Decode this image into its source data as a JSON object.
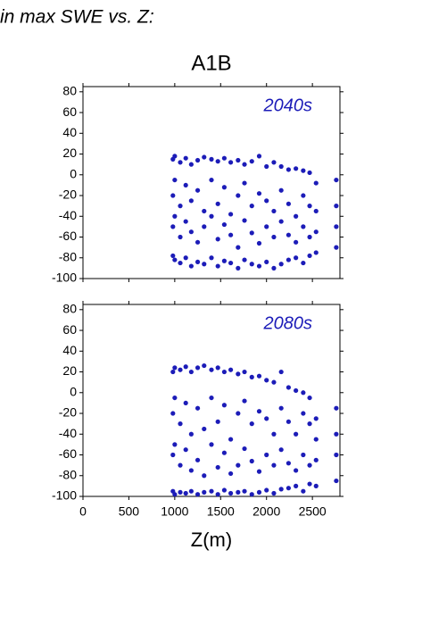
{
  "header": {
    "title": "in max SWE vs. Z:"
  },
  "chart_data": [
    {
      "type": "scatter",
      "title": "A1B",
      "annotation": "2040s",
      "color": "#1c1cb8",
      "xlim": [
        0,
        2800
      ],
      "ylim": [
        -100,
        85
      ],
      "yticks": [
        80,
        60,
        40,
        20,
        0,
        -20,
        -40,
        -60,
        -80,
        -100
      ],
      "xticks": [
        0,
        500,
        1000,
        1500,
        2000,
        2500
      ],
      "x": [
        980,
        980,
        980,
        980,
        1000,
        1000,
        1000,
        1000,
        1060,
        1060,
        1060,
        1060,
        1120,
        1120,
        1120,
        1120,
        1180,
        1180,
        1180,
        1180,
        1250,
        1250,
        1250,
        1250,
        1320,
        1320,
        1320,
        1320,
        1400,
        1400,
        1400,
        1400,
        1470,
        1470,
        1470,
        1470,
        1540,
        1540,
        1540,
        1540,
        1610,
        1610,
        1610,
        1610,
        1690,
        1690,
        1690,
        1690,
        1760,
        1760,
        1760,
        1760,
        1840,
        1840,
        1840,
        1840,
        1920,
        1920,
        1920,
        1920,
        2000,
        2000,
        2000,
        2000,
        2080,
        2080,
        2080,
        2080,
        2160,
        2160,
        2160,
        2160,
        2240,
        2240,
        2240,
        2240,
        2320,
        2320,
        2320,
        2320,
        2400,
        2400,
        2400,
        2400,
        2470,
        2470,
        2470,
        2470,
        2540,
        2540,
        2540,
        2540,
        2760,
        2760,
        2760,
        2760
      ],
      "values": [
        15,
        -20,
        -50,
        -78,
        18,
        -5,
        -40,
        -82,
        12,
        -30,
        -60,
        -85,
        16,
        -10,
        -45,
        -80,
        10,
        -25,
        -55,
        -88,
        14,
        -15,
        -65,
        -84,
        17,
        -35,
        -50,
        -86,
        15,
        -5,
        -40,
        -80,
        13,
        -28,
        -62,
        -88,
        16,
        -12,
        -48,
        -83,
        12,
        -38,
        -58,
        -85,
        14,
        -20,
        -70,
        -90,
        10,
        -8,
        -44,
        -82,
        13,
        -30,
        -56,
        -86,
        18,
        -18,
        -66,
        -88,
        8,
        -25,
        -50,
        -84,
        12,
        -35,
        -60,
        -90,
        8,
        -15,
        -45,
        -86,
        5,
        -28,
        -58,
        -82,
        6,
        -40,
        -65,
        -80,
        4,
        -20,
        -50,
        -85,
        2,
        -30,
        -60,
        -78,
        -8,
        -35,
        -55,
        -75,
        -5,
        -30,
        -50,
        -70
      ]
    },
    {
      "type": "scatter",
      "annotation": "2080s",
      "xlabel": "Z(m)",
      "color": "#1c1cb8",
      "xlim": [
        0,
        2800
      ],
      "ylim": [
        -100,
        85
      ],
      "yticks": [
        80,
        60,
        40,
        20,
        0,
        -20,
        -40,
        -60,
        -80,
        -100
      ],
      "xticks": [
        0,
        500,
        1000,
        1500,
        2000,
        2500
      ],
      "x": [
        980,
        980,
        980,
        980,
        1000,
        1000,
        1000,
        1000,
        1060,
        1060,
        1060,
        1060,
        1120,
        1120,
        1120,
        1120,
        1180,
        1180,
        1180,
        1180,
        1250,
        1250,
        1250,
        1250,
        1320,
        1320,
        1320,
        1320,
        1400,
        1400,
        1400,
        1400,
        1470,
        1470,
        1470,
        1470,
        1540,
        1540,
        1540,
        1540,
        1610,
        1610,
        1610,
        1610,
        1690,
        1690,
        1690,
        1690,
        1760,
        1760,
        1760,
        1760,
        1840,
        1840,
        1840,
        1840,
        1920,
        1920,
        1920,
        1920,
        2000,
        2000,
        2000,
        2000,
        2080,
        2080,
        2080,
        2080,
        2160,
        2160,
        2160,
        2160,
        2240,
        2240,
        2240,
        2240,
        2320,
        2320,
        2320,
        2320,
        2400,
        2400,
        2400,
        2400,
        2470,
        2470,
        2470,
        2470,
        2540,
        2540,
        2540,
        2540,
        2760,
        2760,
        2760,
        2760
      ],
      "values": [
        20,
        -20,
        -60,
        -95,
        24,
        -5,
        -50,
        -98,
        22,
        -30,
        -70,
        -96,
        25,
        -10,
        -55,
        -97,
        20,
        -40,
        -75,
        -95,
        24,
        -15,
        -65,
        -98,
        26,
        -35,
        -80,
        -96,
        22,
        -5,
        -50,
        -95,
        24,
        -28,
        -72,
        -98,
        20,
        -12,
        -58,
        -94,
        22,
        -45,
        -78,
        -97,
        18,
        -20,
        -70,
        -96,
        20,
        -8,
        -54,
        -95,
        15,
        -30,
        -66,
        -98,
        16,
        -18,
        -76,
        -96,
        12,
        -25,
        -60,
        -94,
        10,
        -40,
        -70,
        -97,
        20,
        -15,
        -55,
        -93,
        5,
        -28,
        -68,
        -92,
        2,
        -40,
        -75,
        -90,
        0,
        -20,
        -60,
        -95,
        -5,
        -30,
        -70,
        -88,
        -25,
        -45,
        -65,
        -90,
        -15,
        -40,
        -60,
        -85
      ]
    }
  ]
}
